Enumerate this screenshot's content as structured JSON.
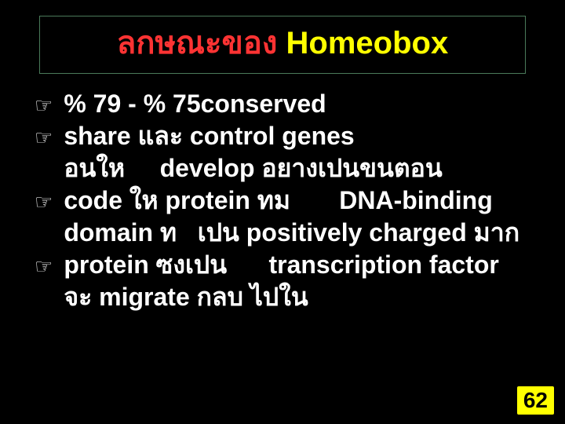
{
  "title": {
    "part1": "ลกษณะของ",
    "part2": "  Homeobox",
    "color1": "#ff3333",
    "color2": "#ffff00",
    "border_color": "#4a7a5a",
    "fontsize": 40
  },
  "bullets": [
    " % 79 - % 75conserved",
    "share และ control genes อนให     develop อยางเปนขนตอน",
    "code ให   protein ทม       DNA-binding domain ท   เปน positively charged มาก",
    "protein ซงเปน      transcription factor จะ migrate กลบ  ไปใน"
  ],
  "bullet_marker": "☞",
  "body_color": "#ffffff",
  "body_fontsize": 32,
  "background_color": "#000000",
  "page_number": "62",
  "badge_bg": "#ffff00",
  "badge_fg": "#000000"
}
